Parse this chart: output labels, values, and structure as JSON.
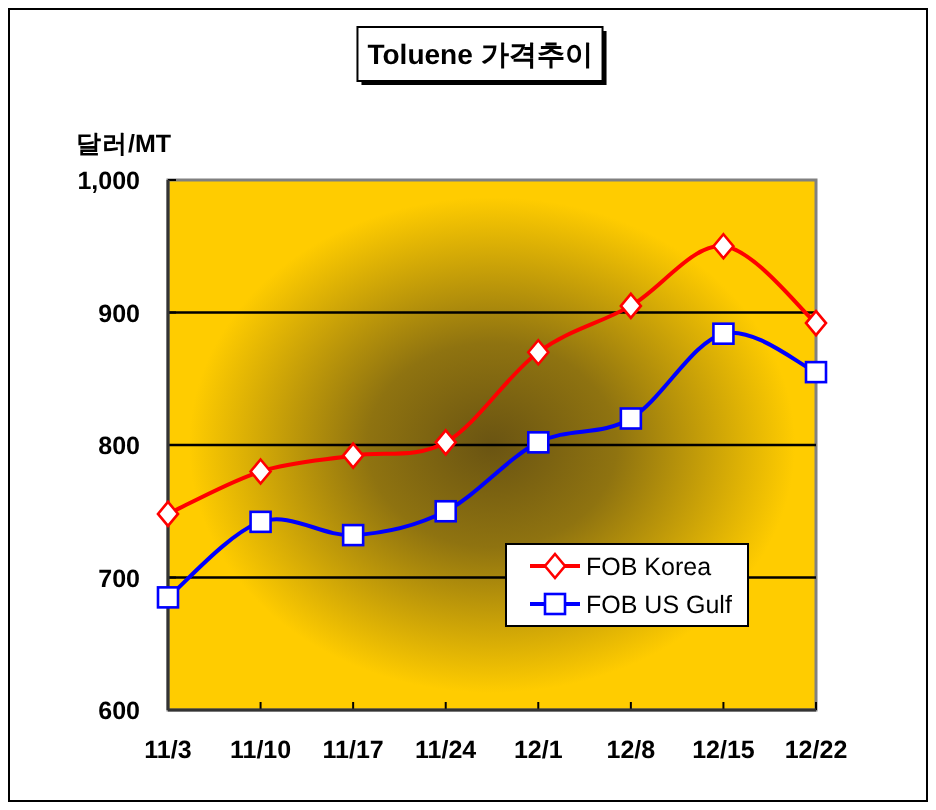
{
  "chart_data": {
    "type": "line",
    "title": "Toluene 가격추이",
    "ylabel": "달러/MT",
    "categories": [
      "11/3",
      "11/10",
      "11/17",
      "11/24",
      "12/1",
      "12/8",
      "12/15",
      "12/22"
    ],
    "series": [
      {
        "name": "FOB Korea",
        "color": "#ff0000",
        "marker": "diamond",
        "values": [
          748,
          780,
          792,
          802,
          870,
          905,
          950,
          892
        ]
      },
      {
        "name": "FOB US Gulf",
        "color": "#0000ff",
        "marker": "square",
        "values": [
          685,
          742,
          732,
          750,
          802,
          820,
          884,
          855
        ]
      }
    ],
    "ylim": [
      600,
      1000
    ],
    "yticks": [
      600,
      700,
      800,
      900,
      {
        "value": 1000,
        "label": "1,000"
      }
    ],
    "grid": "y",
    "legend": "bottom right",
    "line_style": "solid"
  }
}
